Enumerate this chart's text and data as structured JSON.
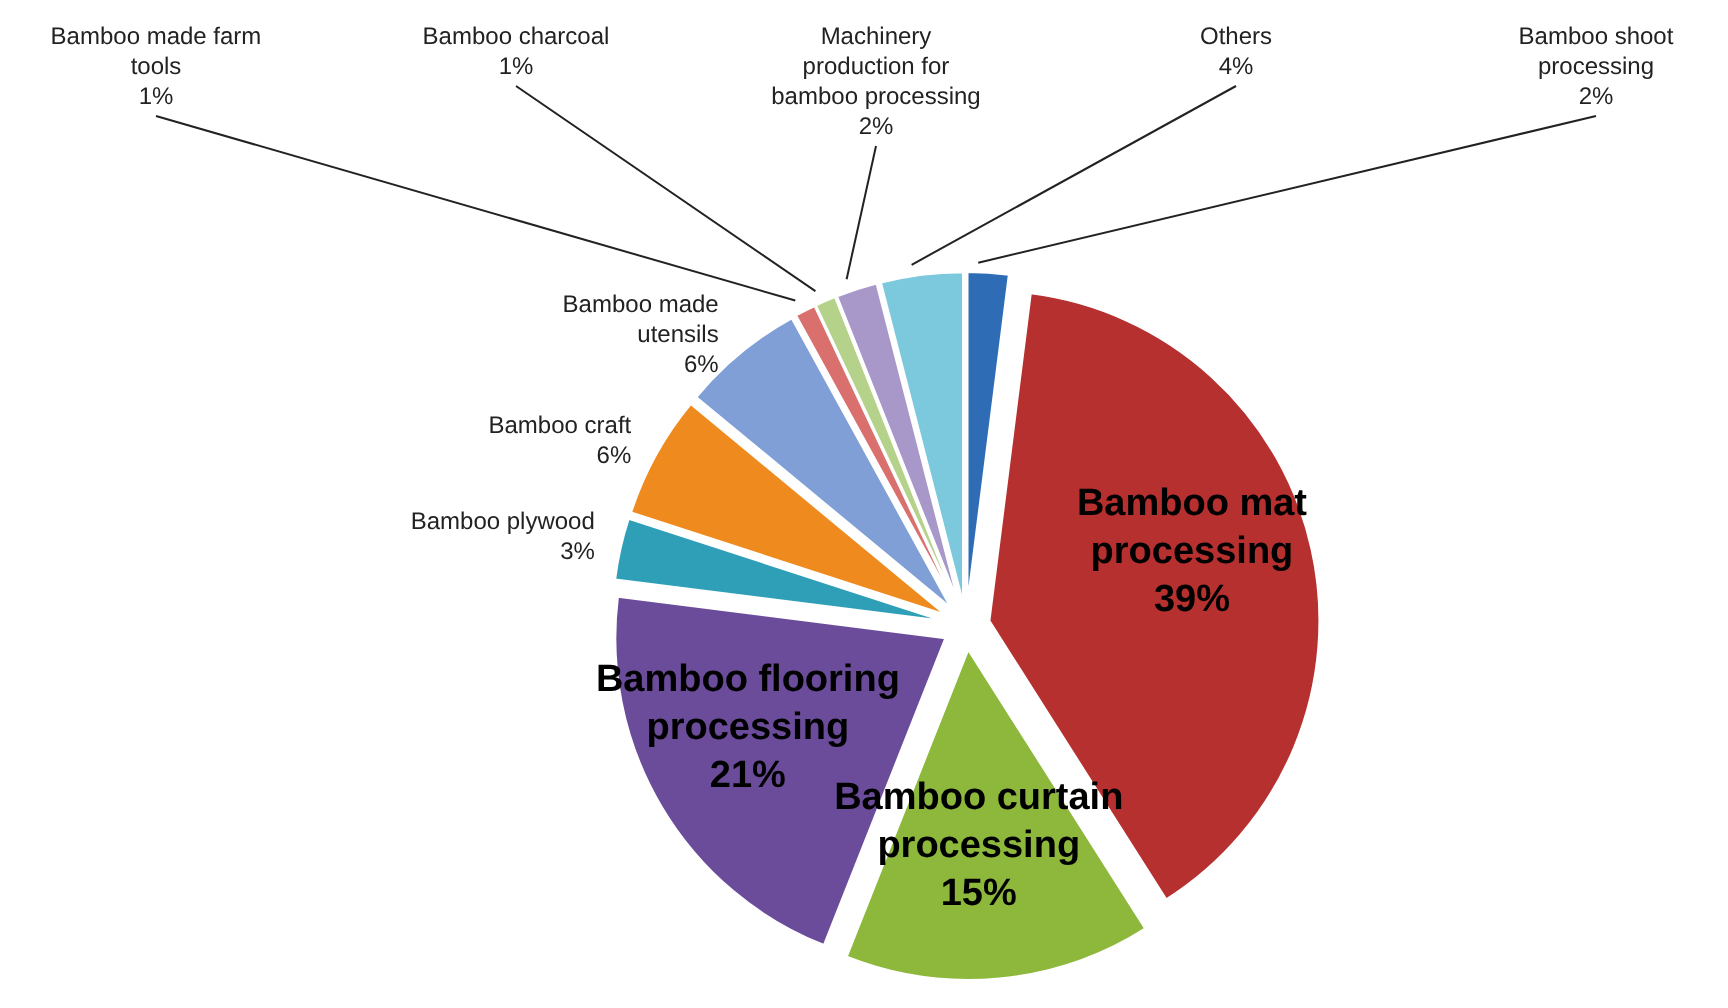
{
  "chart_data": {
    "type": "pie",
    "categories": [
      "Bamboo shoot processing",
      "Bamboo mat processing",
      "Bamboo curtain processing",
      "Bamboo flooring processing",
      "Bamboo plywood",
      "Bamboo craft",
      "Bamboo made utensils",
      "Bamboo made farm tools",
      "Bamboo charcoal",
      "Machinery production for bamboo processing",
      "Others"
    ],
    "values": [
      2,
      39,
      15,
      21,
      3,
      6,
      6,
      1,
      1,
      2,
      4
    ],
    "value_labels": [
      "2%",
      "39%",
      "15%",
      "21%",
      "3%",
      "6%",
      "6%",
      "1%",
      "1%",
      "2%",
      "4%"
    ],
    "colors": [
      "#2e6db5",
      "#b5302e",
      "#8db83c",
      "#6b4c9a",
      "#2f9fb8",
      "#ef8a1e",
      "#7f9fd6",
      "#d9706e",
      "#b4d28a",
      "#a897c9",
      "#7cc8dc"
    ],
    "legend": false
  }
}
